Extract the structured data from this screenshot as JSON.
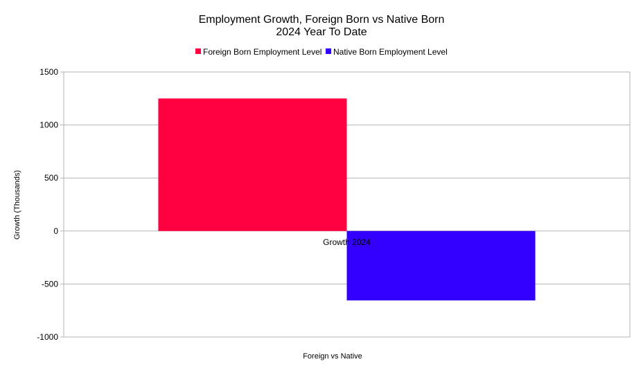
{
  "chart_data": {
    "type": "bar",
    "title_lines": [
      "Employment  Growth, Foreign Born vs Native Born",
      "2024 Year To Date"
    ],
    "xlabel": "Foreign vs Native",
    "ylabel": "Growth (Thousands)",
    "categories": [
      "Growth 2024"
    ],
    "series": [
      {
        "name": "Foreign Born Employment Level",
        "color": "#ff0040",
        "values": [
          1250
        ]
      },
      {
        "name": "Native Born Employment Level",
        "color": "#3300ff",
        "values": [
          -655
        ]
      }
    ],
    "ylim": [
      -1000,
      1500
    ],
    "yticks": [
      1500,
      1000,
      500,
      0,
      -500,
      -1000
    ],
    "grid": true,
    "legend_position": "top-center"
  }
}
